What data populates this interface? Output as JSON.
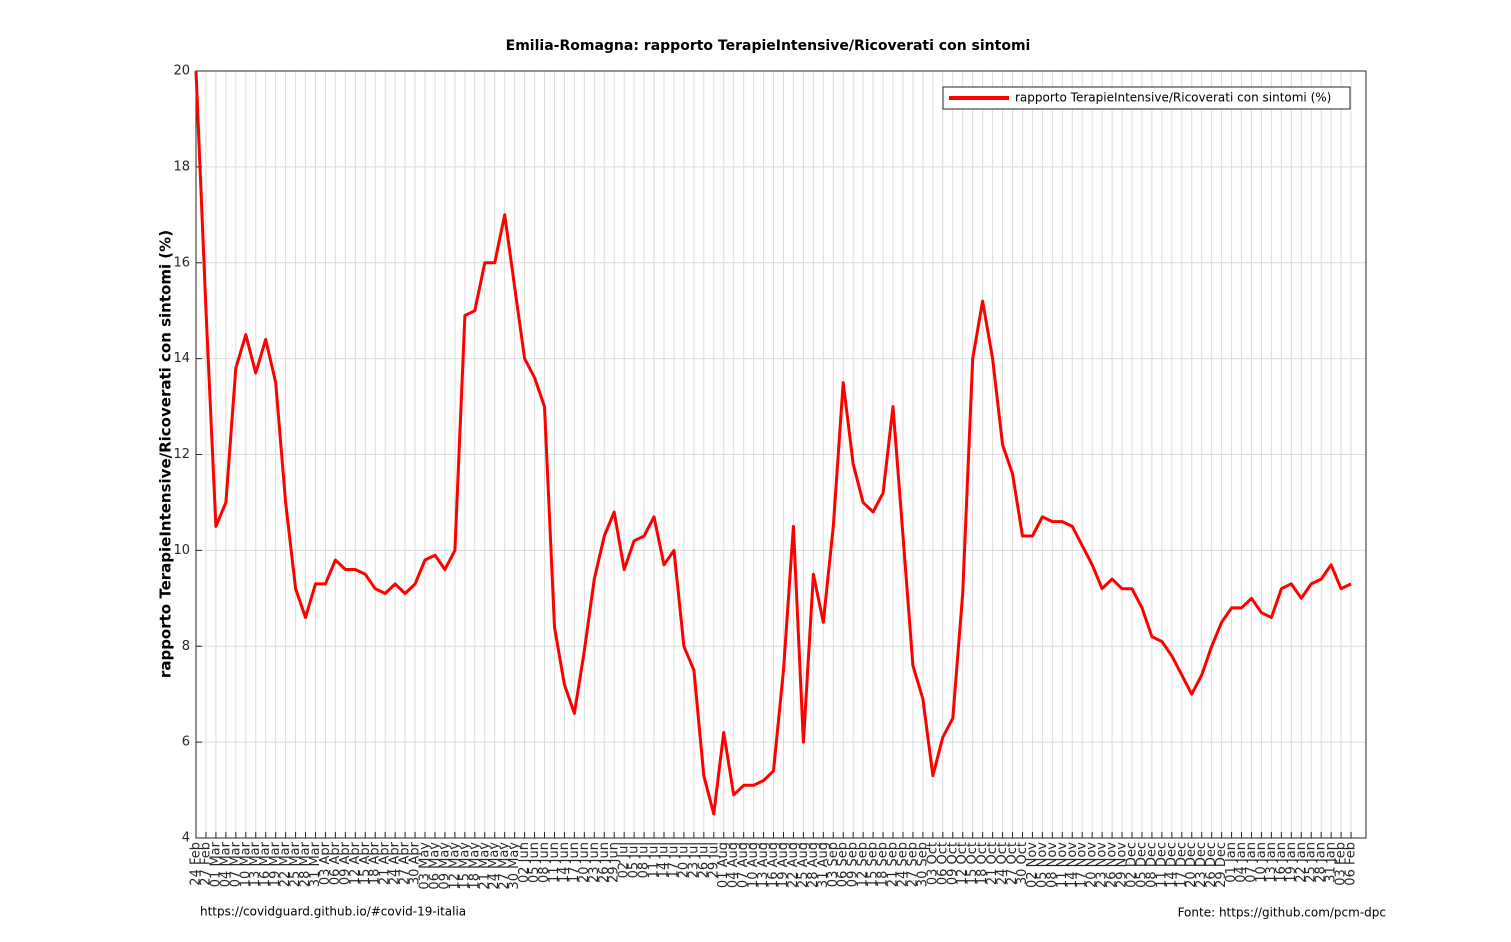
{
  "chart_data": {
    "type": "line",
    "title": "Emilia-Romagna: rapporto TerapieIntensive/Ricoverati con sintomi",
    "y_label": "rapporto TerapieIntensive/Ricoverati con sintomi (%)",
    "source_left": "https://covidguard.github.io/#covid-19-italia",
    "source_right": "Fonte: https://github.com/pcm-dpc",
    "categories": [
      "24 Feb",
      "27 Feb",
      "01 Mar",
      "04 Mar",
      "07 Mar",
      "10 Mar",
      "13 Mar",
      "16 Mar",
      "19 Mar",
      "22 Mar",
      "25 Mar",
      "28 Mar",
      "31 Mar",
      "03 Apr",
      "06 Apr",
      "09 Apr",
      "12 Apr",
      "15 Apr",
      "18 Apr",
      "21 Apr",
      "24 Apr",
      "27 Apr",
      "30 Apr",
      "03 May",
      "06 May",
      "09 May",
      "12 May",
      "15 May",
      "18 May",
      "21 May",
      "24 May",
      "27 May",
      "30 May",
      "02 Jun",
      "05 Jun",
      "08 Jun",
      "11 Jun",
      "14 Jun",
      "17 Jun",
      "20 Jun",
      "23 Jun",
      "26 Jun",
      "29 Jun",
      "02 Jul",
      "05 Jul",
      "08 Jul",
      "11 Jul",
      "14 Jul",
      "17 Jul",
      "20 Jul",
      "23 Jul",
      "26 Jul",
      "29 Jul",
      "01 Aug",
      "04 Aug",
      "07 Aug",
      "10 Aug",
      "13 Aug",
      "16 Aug",
      "19 Aug",
      "22 Aug",
      "25 Aug",
      "28 Aug",
      "31 Aug",
      "03 Sep",
      "06 Sep",
      "09 Sep",
      "12 Sep",
      "15 Sep",
      "18 Sep",
      "21 Sep",
      "24 Sep",
      "27 Sep",
      "30 Sep",
      "03 Oct",
      "06 Oct",
      "09 Oct",
      "12 Oct",
      "15 Oct",
      "18 Oct",
      "21 Oct",
      "24 Oct",
      "27 Oct",
      "30 Oct",
      "02 Nov",
      "05 Nov",
      "08 Nov",
      "11 Nov",
      "14 Nov",
      "17 Nov",
      "20 Nov",
      "23 Nov",
      "26 Nov",
      "29 Nov",
      "02 Dec",
      "05 Dec",
      "08 Dec",
      "11 Dec",
      "14 Dec",
      "17 Dec",
      "20 Dec",
      "23 Dec",
      "26 Dec",
      "29 Dec",
      "01 Jan",
      "04 Jan",
      "07 Jan",
      "10 Jan",
      "13 Jan",
      "16 Jan",
      "19 Jan",
      "22 Jan",
      "25 Jan",
      "28 Jan",
      "31 Jan",
      "03 Feb",
      "06 Feb"
    ],
    "series": [
      {
        "name": "rapporto TerapieIntensive/Ricoverati con sintomi (%)",
        "color": "#ff0000",
        "values": [
          20,
          15,
          10.5,
          11,
          13.8,
          14.5,
          13.7,
          14.4,
          13.5,
          11,
          9.2,
          8.6,
          9.3,
          9.3,
          9.8,
          9.6,
          9.6,
          9.5,
          9.2,
          9.1,
          9.3,
          9.1,
          9.3,
          9.8,
          9.9,
          9.6,
          10,
          14.9,
          15,
          16,
          16,
          17,
          15.5,
          14,
          13.6,
          13,
          8.4,
          7.2,
          6.6,
          7.9,
          9.4,
          10.3,
          10.8,
          9.6,
          10.2,
          10.3,
          10.7,
          9.7,
          10,
          8,
          7.5,
          5.3,
          4.5,
          6.2,
          4.9,
          5.1,
          5.1,
          5.2,
          5.4,
          7.5,
          10.5,
          6,
          9.5,
          8.5,
          10.5,
          13.5,
          11.8,
          11,
          10.8,
          11.2,
          13,
          10.3,
          7.6,
          6.9,
          5.3,
          6.1,
          6.5,
          9.1,
          14,
          15.2,
          14,
          12.2,
          11.6,
          10.3,
          10.3,
          10.7,
          10.6,
          10.6,
          10.5,
          10.1,
          9.7,
          9.2,
          9.4,
          9.2,
          9.2,
          8.8,
          8.2,
          8.1,
          7.8,
          7.4,
          7,
          7.4,
          8,
          8.5,
          8.8,
          8.8,
          9,
          8.7,
          8.6,
          9.2,
          9.3,
          9,
          9.3,
          9.4,
          9.7,
          9.2,
          9.3
        ]
      }
    ],
    "ylim": [
      4,
      20
    ],
    "yticks": [
      4,
      6,
      8,
      10,
      12,
      14,
      16,
      18,
      20
    ],
    "grid": true,
    "legend": "upper right"
  }
}
